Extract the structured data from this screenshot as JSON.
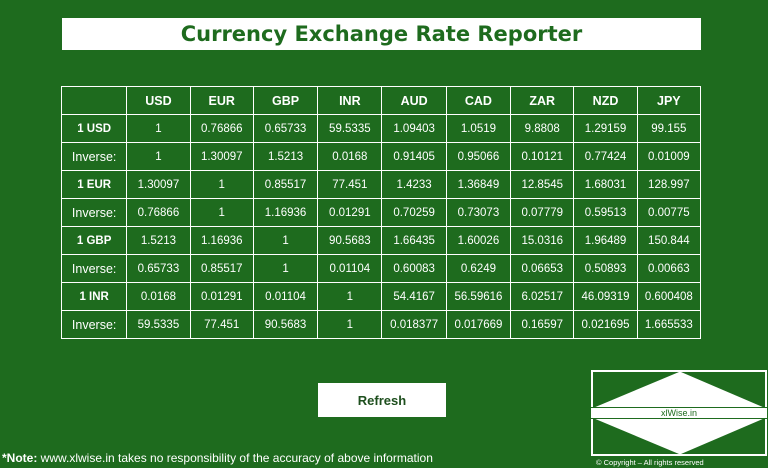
{
  "title": "Currency Exchange Rate Reporter",
  "table": {
    "columns": [
      "USD",
      "EUR",
      "GBP",
      "INR",
      "AUD",
      "CAD",
      "ZAR",
      "NZD",
      "JPY"
    ],
    "rows": [
      {
        "label": "1 USD",
        "type": "base",
        "values": [
          "1",
          "0.76866",
          "0.65733",
          "59.5335",
          "1.09403",
          "1.0519",
          "9.8808",
          "1.29159",
          "99.155"
        ]
      },
      {
        "label": "Inverse:",
        "type": "inverse",
        "values": [
          "1",
          "1.30097",
          "1.5213",
          "0.0168",
          "0.91405",
          "0.95066",
          "0.10121",
          "0.77424",
          "0.01009"
        ]
      },
      {
        "label": "1 EUR",
        "type": "base",
        "values": [
          "1.30097",
          "1",
          "0.85517",
          "77.451",
          "1.4233",
          "1.36849",
          "12.8545",
          "1.68031",
          "128.997"
        ]
      },
      {
        "label": "Inverse:",
        "type": "inverse",
        "values": [
          "0.76866",
          "1",
          "1.16936",
          "0.01291",
          "0.70259",
          "0.73073",
          "0.07779",
          "0.59513",
          "0.00775"
        ]
      },
      {
        "label": "1 GBP",
        "type": "base",
        "values": [
          "1.5213",
          "1.16936",
          "1",
          "90.5683",
          "1.66435",
          "1.60026",
          "15.0316",
          "1.96489",
          "150.844"
        ]
      },
      {
        "label": "Inverse:",
        "type": "inverse",
        "values": [
          "0.65733",
          "0.85517",
          "1",
          "0.01104",
          "0.60083",
          "0.6249",
          "0.06653",
          "0.50893",
          "0.00663"
        ]
      },
      {
        "label": "1 INR",
        "type": "base",
        "values": [
          "0.0168",
          "0.01291",
          "0.01104",
          "1",
          "54.4167",
          "56.59616",
          "6.02517",
          "46.09319",
          "0.600408"
        ]
      },
      {
        "label": "Inverse:",
        "type": "inverse",
        "values": [
          "59.5335",
          "77.451",
          "90.5683",
          "1",
          "0.018377",
          "0.017669",
          "0.16597",
          "0.021695",
          "1.665533"
        ]
      }
    ]
  },
  "refresh_label": "Refresh",
  "note": {
    "prefix": "*Note:",
    "text": " www.xlwise.in takes no responsibility of the accuracy of above information"
  },
  "logo": {
    "text": "xlWise.in",
    "copyright": "© Copyright  – All rights reserved"
  },
  "colors": {
    "background": "#1e6b1e",
    "title_text": "#1e6b1e",
    "white": "#ffffff"
  }
}
